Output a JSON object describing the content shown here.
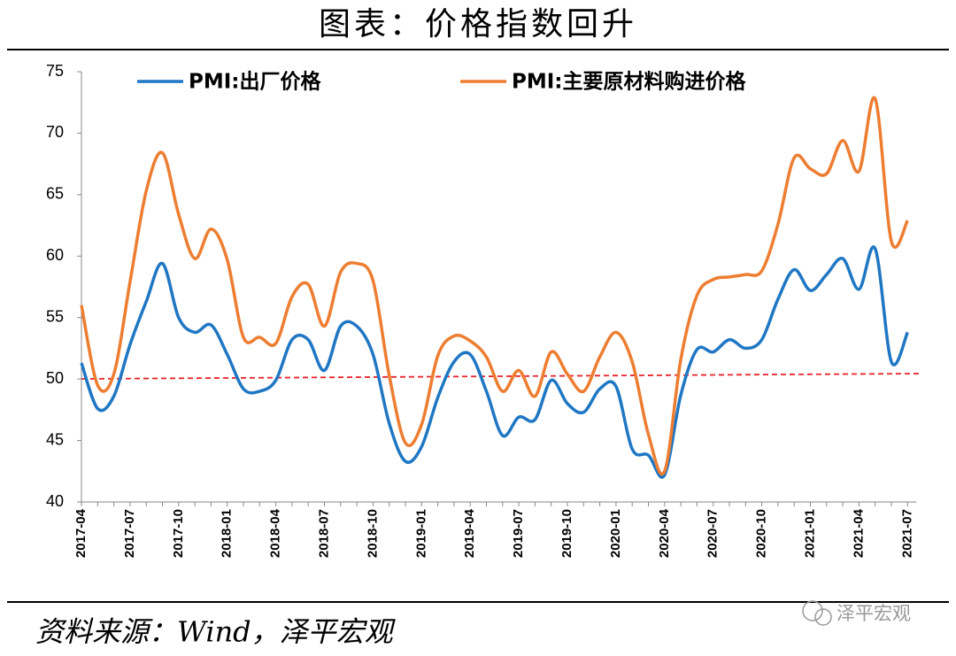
{
  "chart_data": {
    "type": "line",
    "title": "图表：价格指数回升",
    "source": "资料来源：Wind，泽平宏观",
    "watermark": "泽平宏观",
    "categories": [
      "2017-04",
      null,
      null,
      "2017-07",
      null,
      null,
      "2017-10",
      null,
      null,
      "2018-01",
      null,
      null,
      "2018-04",
      null,
      null,
      "2018-07",
      null,
      null,
      "2018-10",
      null,
      null,
      "2019-01",
      null,
      null,
      "2019-04",
      null,
      null,
      "2019-07",
      null,
      null,
      "2019-10",
      null,
      null,
      "2020-01",
      null,
      null,
      "2020-04",
      null,
      null,
      "2020-07",
      null,
      null,
      "2020-10",
      null,
      null,
      "2021-01",
      null,
      null,
      "2021-04",
      null,
      null,
      "2021-07"
    ],
    "series": [
      {
        "name": "PMI:出厂价格",
        "color": "#1f77c4",
        "values": [
          51.3,
          47.6,
          48.6,
          52.8,
          56.3,
          59.4,
          55.0,
          53.8,
          54.4,
          52.0,
          49.2,
          49.0,
          49.9,
          53.2,
          53.2,
          50.7,
          54.3,
          54.3,
          52.0,
          46.4,
          43.3,
          44.5,
          48.5,
          51.4,
          52.0,
          49.0,
          45.4,
          46.9,
          46.7,
          49.9,
          48.0,
          47.3,
          49.2,
          49.4,
          44.3,
          43.8,
          42.2,
          48.7,
          52.4,
          52.2,
          53.2,
          52.5,
          53.2,
          56.5,
          58.9,
          57.2,
          58.5,
          59.8,
          57.3,
          60.6,
          51.4,
          53.8
        ]
      },
      {
        "name": "PMI:主要原材料购进价格",
        "color": "#ed7d31",
        "values": [
          56.0,
          49.5,
          50.4,
          57.9,
          65.3,
          68.4,
          63.4,
          59.8,
          62.2,
          59.7,
          53.4,
          53.4,
          52.9,
          56.7,
          57.7,
          54.3,
          58.7,
          59.4,
          58.0,
          50.3,
          44.8,
          46.3,
          51.9,
          53.5,
          53.1,
          51.8,
          49.0,
          50.7,
          48.6,
          52.2,
          50.4,
          49.0,
          51.8,
          53.8,
          51.4,
          45.5,
          42.5,
          51.6,
          56.8,
          58.1,
          58.3,
          58.5,
          58.8,
          62.6,
          68.0,
          67.1,
          66.7,
          69.4,
          66.9,
          72.8,
          61.2,
          62.9
        ]
      }
    ],
    "ylim": [
      40,
      75
    ],
    "yticks": [
      40,
      45,
      50,
      55,
      60,
      65,
      70,
      75
    ]
  }
}
